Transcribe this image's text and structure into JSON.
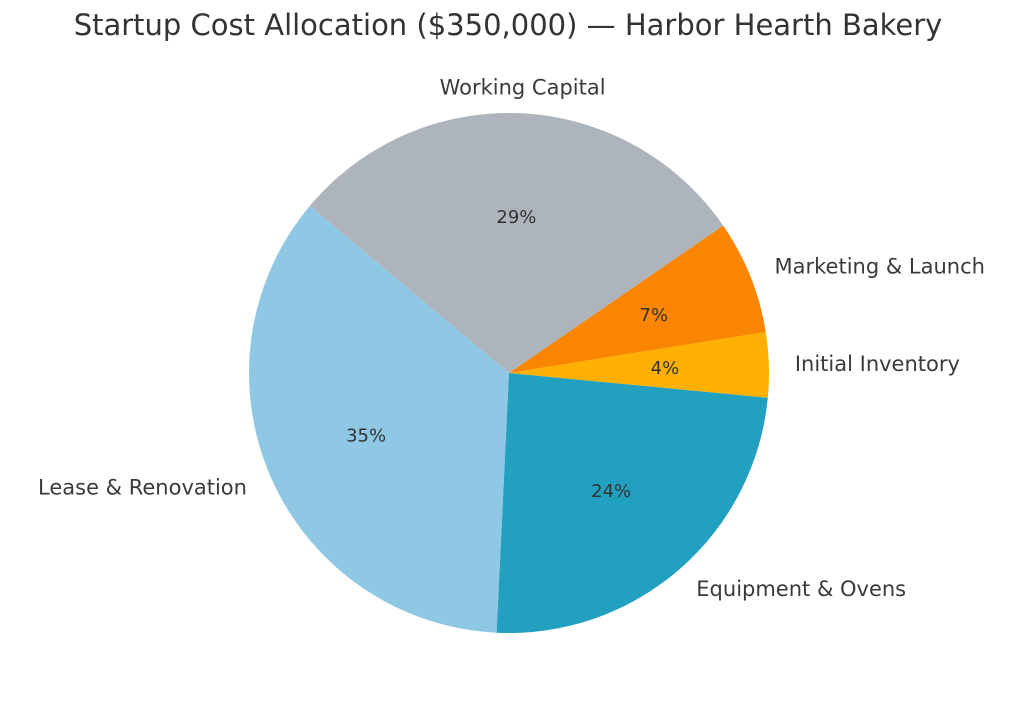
{
  "chart_data": {
    "type": "pie",
    "title": "Startup Cost Allocation ($350,000) — Harbor Hearth Bakery",
    "categories": [
      "Lease & Renovation",
      "Equipment & Ovens",
      "Initial Inventory",
      "Marketing & Launch",
      "Working Capital"
    ],
    "values": [
      35,
      24,
      4,
      7,
      29
    ],
    "value_labels": [
      "35%",
      "24%",
      "4%",
      "7%",
      "29%"
    ],
    "colors": [
      "#8fc8e5",
      "#22a0c0",
      "#ffb000",
      "#f98500",
      "#adb4bb"
    ],
    "start_angle_deg": 140,
    "direction": "counterclockwise",
    "legend": "none"
  }
}
